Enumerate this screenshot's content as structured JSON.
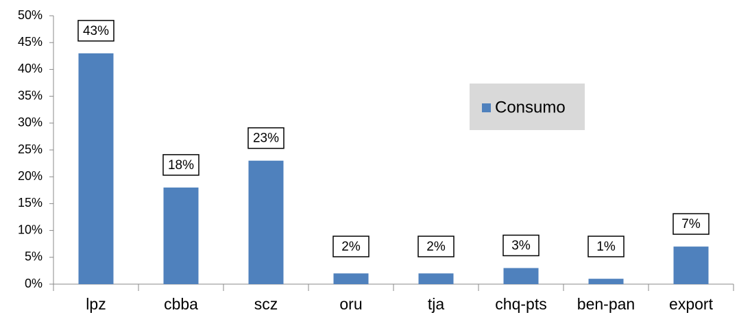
{
  "chart_data": {
    "type": "bar",
    "categories": [
      "lpz",
      "cbba",
      "scz",
      "oru",
      "tja",
      "chq-pts",
      "ben-pan",
      "export"
    ],
    "series": [
      {
        "name": "Consumo",
        "color": "#4f81bd",
        "values": [
          43,
          18,
          23,
          2,
          2,
          3,
          1,
          7
        ],
        "value_labels": [
          "43%",
          "18%",
          "23%",
          "2%",
          "2%",
          "3%",
          "1%",
          "7%"
        ]
      }
    ],
    "ylim": [
      0,
      50
    ],
    "yticks": [
      {
        "value": 0,
        "label": "0%"
      },
      {
        "value": 5,
        "label": "5%"
      },
      {
        "value": 10,
        "label": "10%"
      },
      {
        "value": 15,
        "label": "15%"
      },
      {
        "value": 20,
        "label": "20%"
      },
      {
        "value": 25,
        "label": "25%"
      },
      {
        "value": 30,
        "label": "30%"
      },
      {
        "value": 35,
        "label": "35%"
      },
      {
        "value": 40,
        "label": "40%"
      },
      {
        "value": 45,
        "label": "45%"
      },
      {
        "value": 50,
        "label": "50%"
      }
    ],
    "grid": false,
    "legend": "upper right"
  }
}
